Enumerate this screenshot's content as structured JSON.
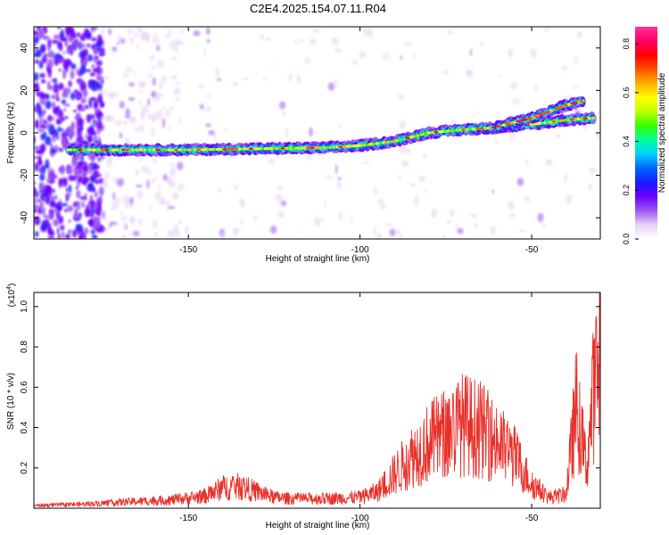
{
  "title": "C2E4.2025.154.07.11.R04",
  "chart_data": [
    {
      "type": "heatmap",
      "xlabel": "Height of straight line (km)",
      "ylabel": "Frequency (Hz)",
      "xlim": [
        -195,
        -30
      ],
      "ylim": [
        -50,
        50
      ],
      "xticks": [
        -150,
        -100,
        -50
      ],
      "yticks": [
        -40,
        -20,
        0,
        20,
        40
      ],
      "colorbar": {
        "label": "Normalized spectral amplitude",
        "range": [
          0,
          0.87
        ],
        "ticks": [
          "0.0",
          "0.2",
          "0.4",
          "0.6",
          "0.8"
        ],
        "colors": [
          "#ffffff",
          "#e6d2f5",
          "#9b59f0",
          "#6a00ff",
          "#1a1aff",
          "#0066ff",
          "#00cfff",
          "#00ff99",
          "#33ff00",
          "#bfff00",
          "#ffff00",
          "#ffb000",
          "#ff5000",
          "#ff0000",
          "#ff0066",
          "#ff3399"
        ]
      },
      "ridge_main": {
        "x": [
          -185,
          -170,
          -150,
          -130,
          -110,
          -100,
          -90,
          -80,
          -70,
          -60,
          -50,
          -40,
          -32
        ],
        "y": [
          -8,
          -8,
          -8,
          -7.5,
          -7,
          -6,
          -4,
          0,
          1.5,
          2.5,
          4,
          6,
          7
        ]
      },
      "ridge_upper": {
        "x": [
          -60,
          -50,
          -45,
          -40,
          -35
        ],
        "y": [
          3,
          7,
          10,
          13,
          15
        ]
      }
    },
    {
      "type": "line",
      "xlabel": "Height of straight line (km)",
      "ylabel": "SNR (10 * v/v)",
      "y_multiplier": "(x10",
      "y_multiplier_exp": "4",
      "xlim": [
        -195,
        -30
      ],
      "ylim": [
        0,
        1.07
      ],
      "xticks": [
        -150,
        -100,
        -50
      ],
      "yticks": [
        "0.2",
        "0.4",
        "0.6",
        "0.8",
        "1.0"
      ],
      "line_color": "#e8302a",
      "envelope": {
        "x": [
          -195,
          -180,
          -165,
          -155,
          -145,
          -140,
          -135,
          -130,
          -125,
          -120,
          -110,
          -100,
          -95,
          -90,
          -85,
          -80,
          -75,
          -70,
          -65,
          -60,
          -55,
          -50,
          -45,
          -40,
          -37,
          -34,
          -32,
          -30
        ],
        "y": [
          0.02,
          0.03,
          0.05,
          0.06,
          0.09,
          0.15,
          0.16,
          0.12,
          0.08,
          0.07,
          0.07,
          0.08,
          0.12,
          0.25,
          0.38,
          0.48,
          0.55,
          0.62,
          0.58,
          0.48,
          0.38,
          0.18,
          0.08,
          0.1,
          0.75,
          0.3,
          0.85,
          1.07
        ]
      }
    }
  ]
}
